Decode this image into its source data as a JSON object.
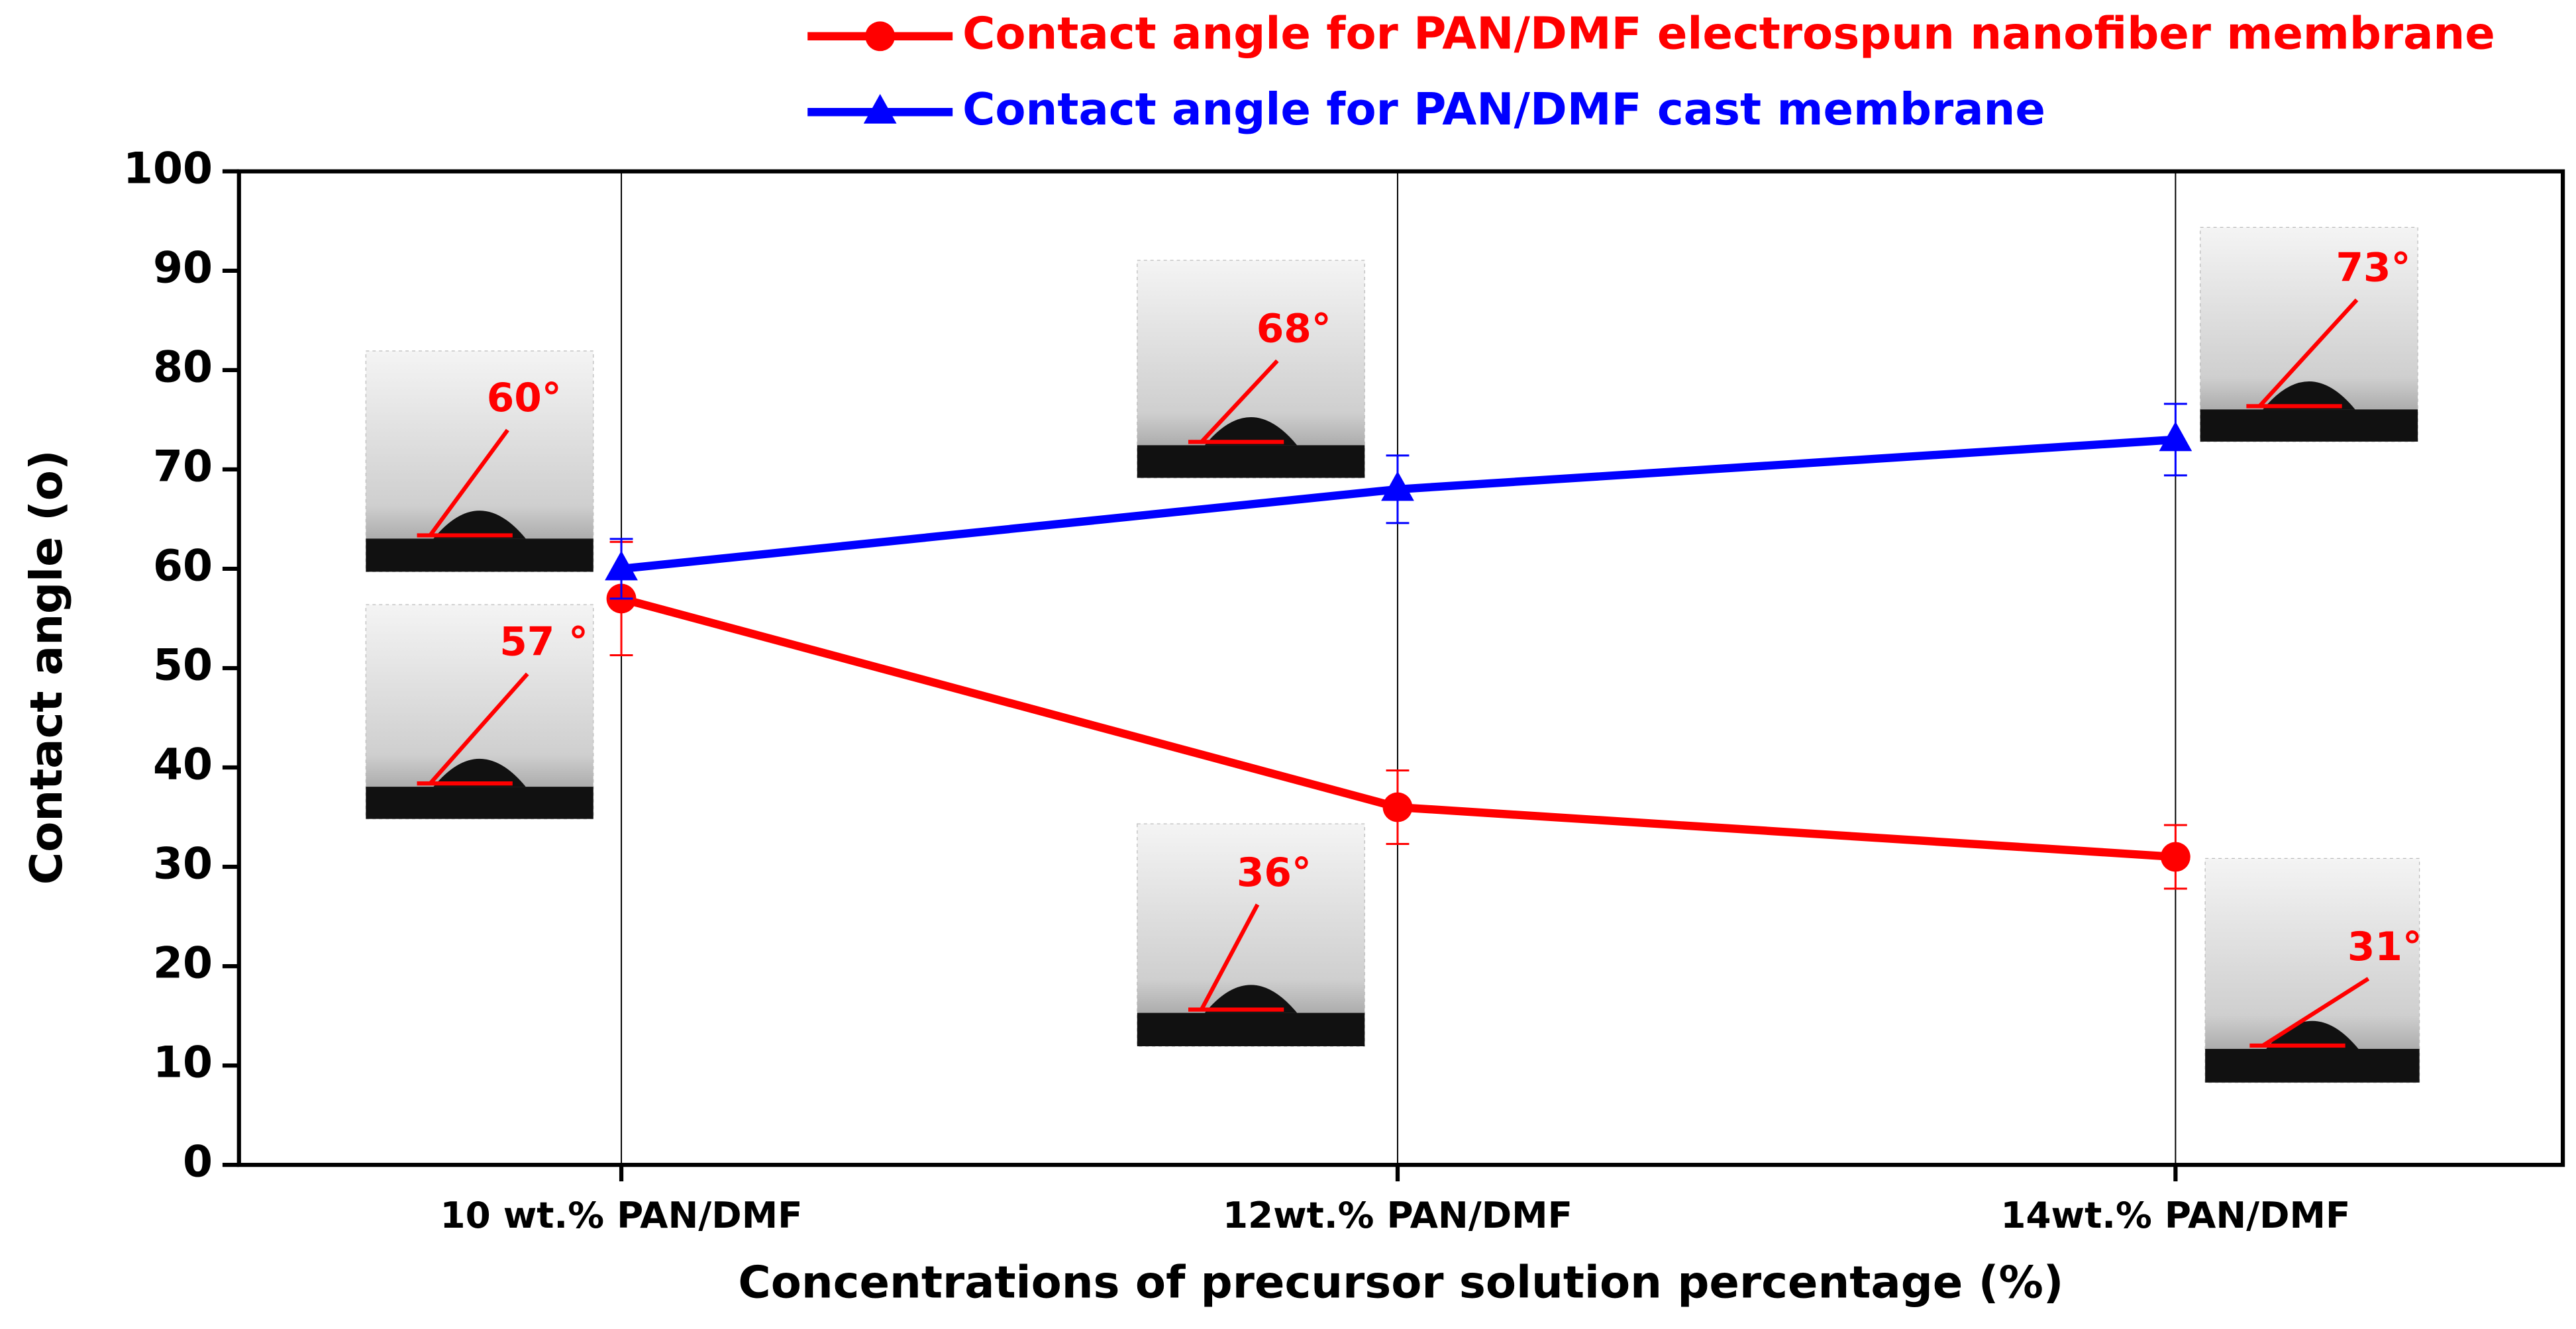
{
  "chart_data": {
    "type": "line",
    "x_label": "Concentrations of precursor solution percentage (%)",
    "y_label": "Contact angle (o)",
    "categories": [
      "10 wt.% PAN/DMF",
      "12wt.% PAN/DMF",
      "14wt.% PAN/DMF"
    ],
    "series": [
      {
        "name": "Contact angle for PAN/DMF electrospun nanofiber membrane",
        "color": "#ff0000",
        "marker": "circle",
        "values": [
          57,
          36,
          31
        ],
        "errors": [
          5.7,
          3.7,
          3.2
        ]
      },
      {
        "name": "Contact angle for PAN/DMF cast membrane",
        "color": "#0000ff",
        "marker": "triangle",
        "values": [
          60,
          68,
          73
        ],
        "errors": [
          3,
          3.4,
          3.6
        ]
      }
    ],
    "ylim": [
      0,
      100
    ],
    "yticks": [
      0,
      10,
      20,
      30,
      40,
      50,
      60,
      70,
      80,
      90,
      100
    ],
    "x_grid": true,
    "legend": "top",
    "annotations": [
      {
        "text": "60°"
      },
      {
        "text": "57 °"
      },
      {
        "text": "68°"
      },
      {
        "text": "36°"
      },
      {
        "text": "73°"
      },
      {
        "text": "31°"
      }
    ]
  }
}
